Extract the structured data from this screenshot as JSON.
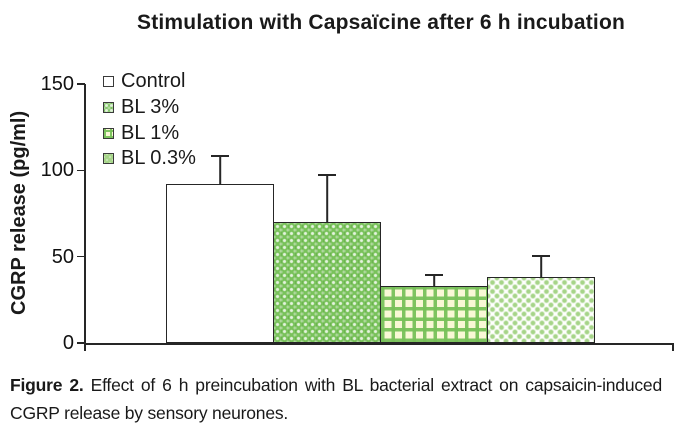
{
  "figure": {
    "title": "Stimulation with Capsaïcine after 6 h incubation",
    "y_axis_label": "CGRP release (pg/ml)",
    "caption_label": "Figure 2.",
    "caption_text": "Effect of 6 h preincubation with BL bacterial extract on capsaicin-induced CGRP release by sensory neurones."
  },
  "chart_data": {
    "type": "bar",
    "categories": [
      "Control",
      "BL 3%",
      "BL 1%",
      "BL 0.3%"
    ],
    "values": [
      92,
      70,
      33,
      38
    ],
    "errors_upper": [
      17,
      28,
      7,
      13
    ],
    "title": "Stimulation with Capsaïcine after 6 h incubation",
    "xlabel": "",
    "ylabel": "CGRP release (pg/ml)",
    "ylim": [
      0,
      150
    ],
    "yticks": [
      0,
      50,
      100,
      150
    ],
    "grid": false,
    "legend": {
      "position": "upper-left-inside",
      "entries": [
        "Control",
        "BL 3%",
        "BL 1%",
        "BL 0.3%"
      ]
    },
    "bar_styles": [
      {
        "name": "control",
        "fill": "#ffffff",
        "pattern": "solid-white"
      },
      {
        "name": "bl-3pct",
        "fill": "#79c25b",
        "pattern": "white-dots-on-green"
      },
      {
        "name": "bl-1pct",
        "fill": "#f9f8d6",
        "pattern": "green-gingham-plaid"
      },
      {
        "name": "bl-0_3pct",
        "fill": "#ffffff",
        "pattern": "light-green-dot-lattice"
      }
    ],
    "border_color": "#262626"
  }
}
